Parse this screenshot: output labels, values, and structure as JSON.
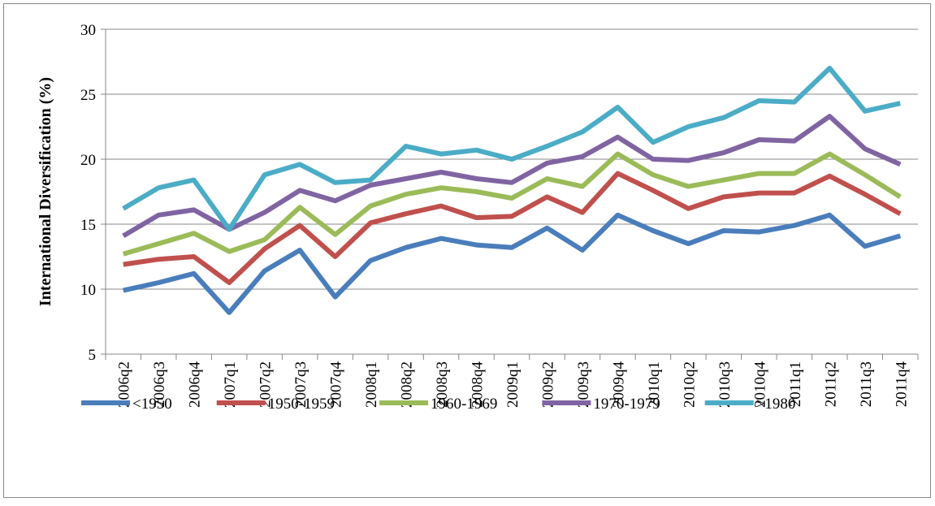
{
  "chart_data": {
    "type": "line",
    "y_label": "International Diversification (%)",
    "categories": [
      "2006q2",
      "2006q3",
      "2006q4",
      "2007q1",
      "2007q2",
      "2007q3",
      "2007q4",
      "2008q1",
      "2008q2",
      "2008q3",
      "2008q4",
      "2009q1",
      "2009q2",
      "2009q3",
      "2009q4",
      "2010q1",
      "2010q2",
      "2010q3",
      "2010q4",
      "2011q1",
      "2011q2",
      "2011q3",
      "2011q4"
    ],
    "series": [
      {
        "name": "<1950",
        "color": "#4a7dbb",
        "values": [
          9.9,
          10.5,
          11.2,
          8.2,
          11.4,
          13.0,
          9.4,
          12.2,
          13.2,
          13.9,
          13.4,
          13.2,
          14.7,
          13.0,
          15.7,
          14.5,
          13.5,
          14.5,
          14.4,
          14.9,
          15.7,
          13.3,
          14.1
        ]
      },
      {
        "name": "1950-1959",
        "color": "#c0504d",
        "values": [
          11.9,
          12.3,
          12.5,
          10.5,
          13.1,
          14.9,
          12.5,
          15.1,
          15.8,
          16.4,
          15.5,
          15.6,
          17.1,
          15.9,
          18.9,
          17.6,
          16.2,
          17.1,
          17.4,
          17.4,
          18.7,
          17.3,
          15.8
        ]
      },
      {
        "name": "1960-1969",
        "color": "#9bbb59",
        "values": [
          12.7,
          13.5,
          14.3,
          12.9,
          13.8,
          16.3,
          14.2,
          16.4,
          17.3,
          17.8,
          17.5,
          17.0,
          18.5,
          17.9,
          20.4,
          18.8,
          17.9,
          18.4,
          18.9,
          18.9,
          20.4,
          18.8,
          17.1
        ]
      },
      {
        "name": "1970-1979",
        "color": "#8064a2",
        "values": [
          14.1,
          15.7,
          16.1,
          14.6,
          15.9,
          17.6,
          16.8,
          18.0,
          18.5,
          19.0,
          18.5,
          18.2,
          19.7,
          20.2,
          21.7,
          20.0,
          19.9,
          20.5,
          21.5,
          21.4,
          23.3,
          20.8,
          19.6
        ]
      },
      {
        "name": ">1980",
        "color": "#4bacc6",
        "values": [
          16.2,
          17.8,
          18.4,
          14.6,
          18.8,
          19.6,
          18.2,
          18.4,
          21.0,
          20.4,
          20.7,
          20.0,
          21.0,
          22.1,
          24.0,
          21.3,
          22.5,
          23.2,
          24.5,
          24.4,
          27.0,
          23.7,
          24.3
        ]
      }
    ],
    "ylim": [
      5,
      30
    ],
    "yticks": [
      5,
      10,
      15,
      20,
      25,
      30
    ],
    "grid": true,
    "legend": "bottom"
  }
}
